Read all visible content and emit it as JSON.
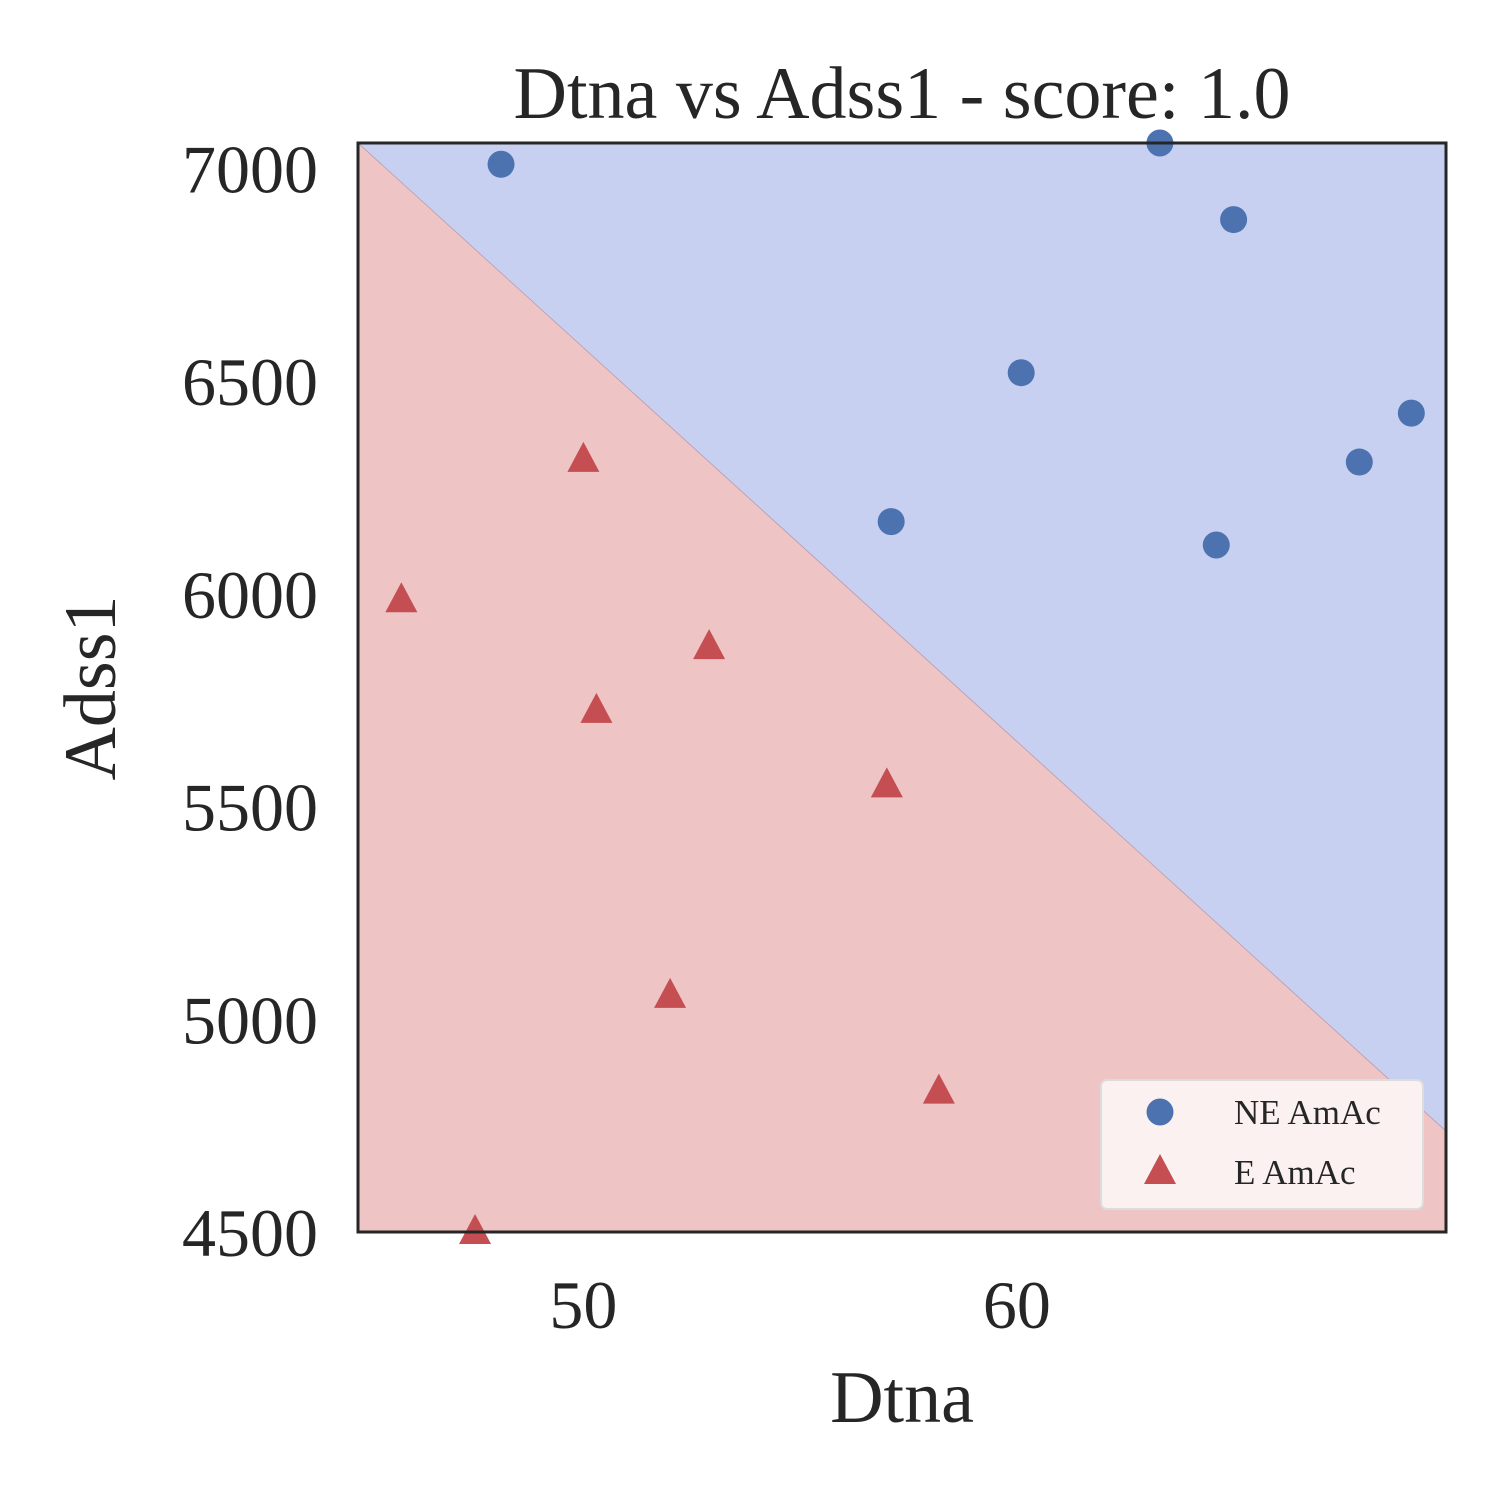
{
  "chart_data": {
    "type": "scatter",
    "title": "Dtna vs Adss1 - score: 1.0",
    "xlabel": "Dtna",
    "ylabel": "Adss1",
    "xlim": [
      44.8,
      69.9
    ],
    "ylim": [
      4500,
      7060
    ],
    "xticks": [
      50,
      60
    ],
    "yticks": [
      4500,
      5000,
      5500,
      6000,
      6500,
      7000
    ],
    "grid": false,
    "legend_position": "lower-right",
    "decision_boundary": {
      "line": [
        [
          44.8,
          7060
        ],
        [
          69.9,
          4737
        ]
      ],
      "upper_region_color": "#c8d0f1",
      "lower_region_color": "#eec4c4"
    },
    "series": [
      {
        "name": "NE AmAc",
        "marker": "circle",
        "color": "#4c72b0",
        "points": [
          [
            48.1,
            7010
          ],
          [
            63.3,
            7060
          ],
          [
            65.0,
            6880
          ],
          [
            60.1,
            6520
          ],
          [
            69.1,
            6425
          ],
          [
            67.9,
            6310
          ],
          [
            57.1,
            6170
          ],
          [
            64.6,
            6115
          ]
        ]
      },
      {
        "name": "E AmAc",
        "marker": "triangle",
        "color": "#c44e52",
        "points": [
          [
            50.0,
            6315
          ],
          [
            45.8,
            5985
          ],
          [
            52.9,
            5875
          ],
          [
            50.3,
            5725
          ],
          [
            57.0,
            5550
          ],
          [
            52.0,
            5055
          ],
          [
            58.2,
            4830
          ],
          [
            47.5,
            4500
          ]
        ]
      }
    ]
  }
}
